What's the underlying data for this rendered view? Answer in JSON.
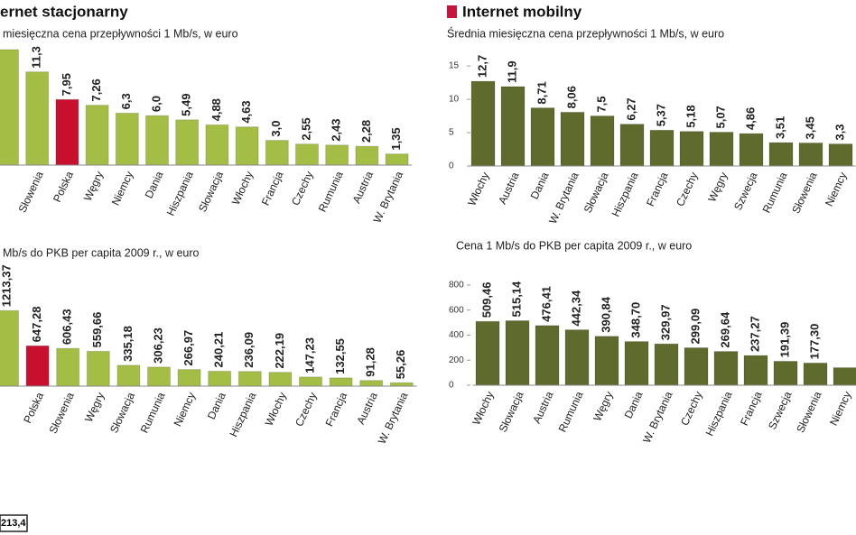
{
  "chart_data": [
    {
      "type": "bar",
      "title": "ernet stacjonarny",
      "subtitle": "miesięczna cena przepływności 1 Mb/s, w euro",
      "categories": [
        null,
        "Słowenia",
        "Polska",
        "Węgry",
        "Niemcy",
        "Dania",
        "Hiszpania",
        "Słowacja",
        "Włochy",
        "Francja",
        "Czechy",
        "Rumunia",
        "Austria",
        "W. Brytania"
      ],
      "values": [
        14,
        11.3,
        7.95,
        7.26,
        6.3,
        6.0,
        5.49,
        4.88,
        4.63,
        3.0,
        2.55,
        2.43,
        2.28,
        1.35
      ],
      "value_labels": [
        null,
        "11,3",
        "7,95",
        "7,26",
        "6,3",
        "6,0",
        "5,49",
        "4,88",
        "4,63",
        "3,0",
        "2,55",
        "2,43",
        "2,28",
        "1,35"
      ],
      "colors": [
        "#a3bd45",
        "#a3bd45",
        "#c8102e",
        "#a3bd45",
        "#a3bd45",
        "#a3bd45",
        "#a3bd45",
        "#a3bd45",
        "#a3bd45",
        "#a3bd45",
        "#a3bd45",
        "#a3bd45",
        "#a3bd45",
        "#a3bd45"
      ],
      "ylim": [
        0,
        14
      ]
    },
    {
      "type": "bar",
      "subtitle": "Mb/s do PKB per capita 2009 r., w euro",
      "categories": [
        null,
        "Polska",
        "Słowenia",
        "Węgry",
        "Słowacja",
        "Rumunia",
        "Niemcy",
        "Dania",
        "Hiszpania",
        "Włochy",
        "Czechy",
        "Francja",
        "Austria",
        "W. Brytania"
      ],
      "values": [
        1213.37,
        647.28,
        606.43,
        559.66,
        335.18,
        306.23,
        266.97,
        240.21,
        236.09,
        222.19,
        147.23,
        132.55,
        91.28,
        55.26
      ],
      "value_labels": [
        "1213,37",
        "647,28",
        "606,43",
        "559,66",
        "335,18",
        "306,23",
        "266,97",
        "240,21",
        "236,09",
        "222,19",
        "147,23",
        "132,55",
        "91,28",
        "55,26"
      ],
      "colors": [
        "#a3bd45",
        "#c8102e",
        "#a3bd45",
        "#a3bd45",
        "#a3bd45",
        "#a3bd45",
        "#a3bd45",
        "#a3bd45",
        "#a3bd45",
        "#a3bd45",
        "#a3bd45",
        "#a3bd45",
        "#a3bd45",
        "#a3bd45"
      ],
      "ylim": [
        0,
        2000
      ]
    },
    {
      "type": "bar",
      "title": "Internet mobilny",
      "subtitle": "Średnia miesięczna cena przepływności 1 Mb/s, w euro",
      "categories": [
        "Włochy",
        "Austria",
        "Dania",
        "W. Brytania",
        "Słowacja",
        "Hiszpania",
        "Francja",
        "Czechy",
        "Węgry",
        "Szwecja",
        "Rumunia",
        "Słowenia",
        "Niemcy"
      ],
      "values": [
        12.7,
        11.9,
        8.71,
        8.06,
        7.5,
        6.27,
        5.37,
        5.18,
        5.07,
        4.86,
        3.51,
        3.45,
        3.3
      ],
      "value_labels": [
        "12,7",
        "11,9",
        "8,71",
        "8,06",
        "7,5",
        "6,27",
        "5,37",
        "5,18",
        "5,07",
        "4,86",
        "3,51",
        "3,45",
        "3,3"
      ],
      "color": "#5f6b2c",
      "ylim": [
        0,
        16.5
      ],
      "yticks": [
        0,
        5,
        10,
        15
      ]
    },
    {
      "type": "bar",
      "subtitle": "Cena 1 Mb/s do PKB per capita 2009 r., w euro",
      "categories": [
        "Włochy",
        "Słowacja",
        "Austria",
        "Rumunia",
        "Węgry",
        "Dania",
        "W. Brytania",
        "Czechy",
        "Hiszpania",
        "Francja",
        "Szwecja",
        "Słowenia",
        "Niemcy"
      ],
      "values": [
        509.46,
        515.14,
        476.41,
        442.34,
        390.84,
        348.7,
        329.97,
        299.09,
        269.64,
        237.27,
        191.39,
        177.3,
        140
      ],
      "value_labels": [
        "509,46",
        "515,14",
        "476,41",
        "442,34",
        "390,84",
        "348,70",
        "329,97",
        "299,09",
        "269,64",
        "237,27",
        "191,39",
        "177,30",
        null
      ],
      "color": "#5f6b2c",
      "ylim": [
        0,
        850
      ],
      "yticks": [
        0,
        200,
        400,
        600,
        800
      ]
    }
  ],
  "footer": {
    "label": "213,4"
  }
}
